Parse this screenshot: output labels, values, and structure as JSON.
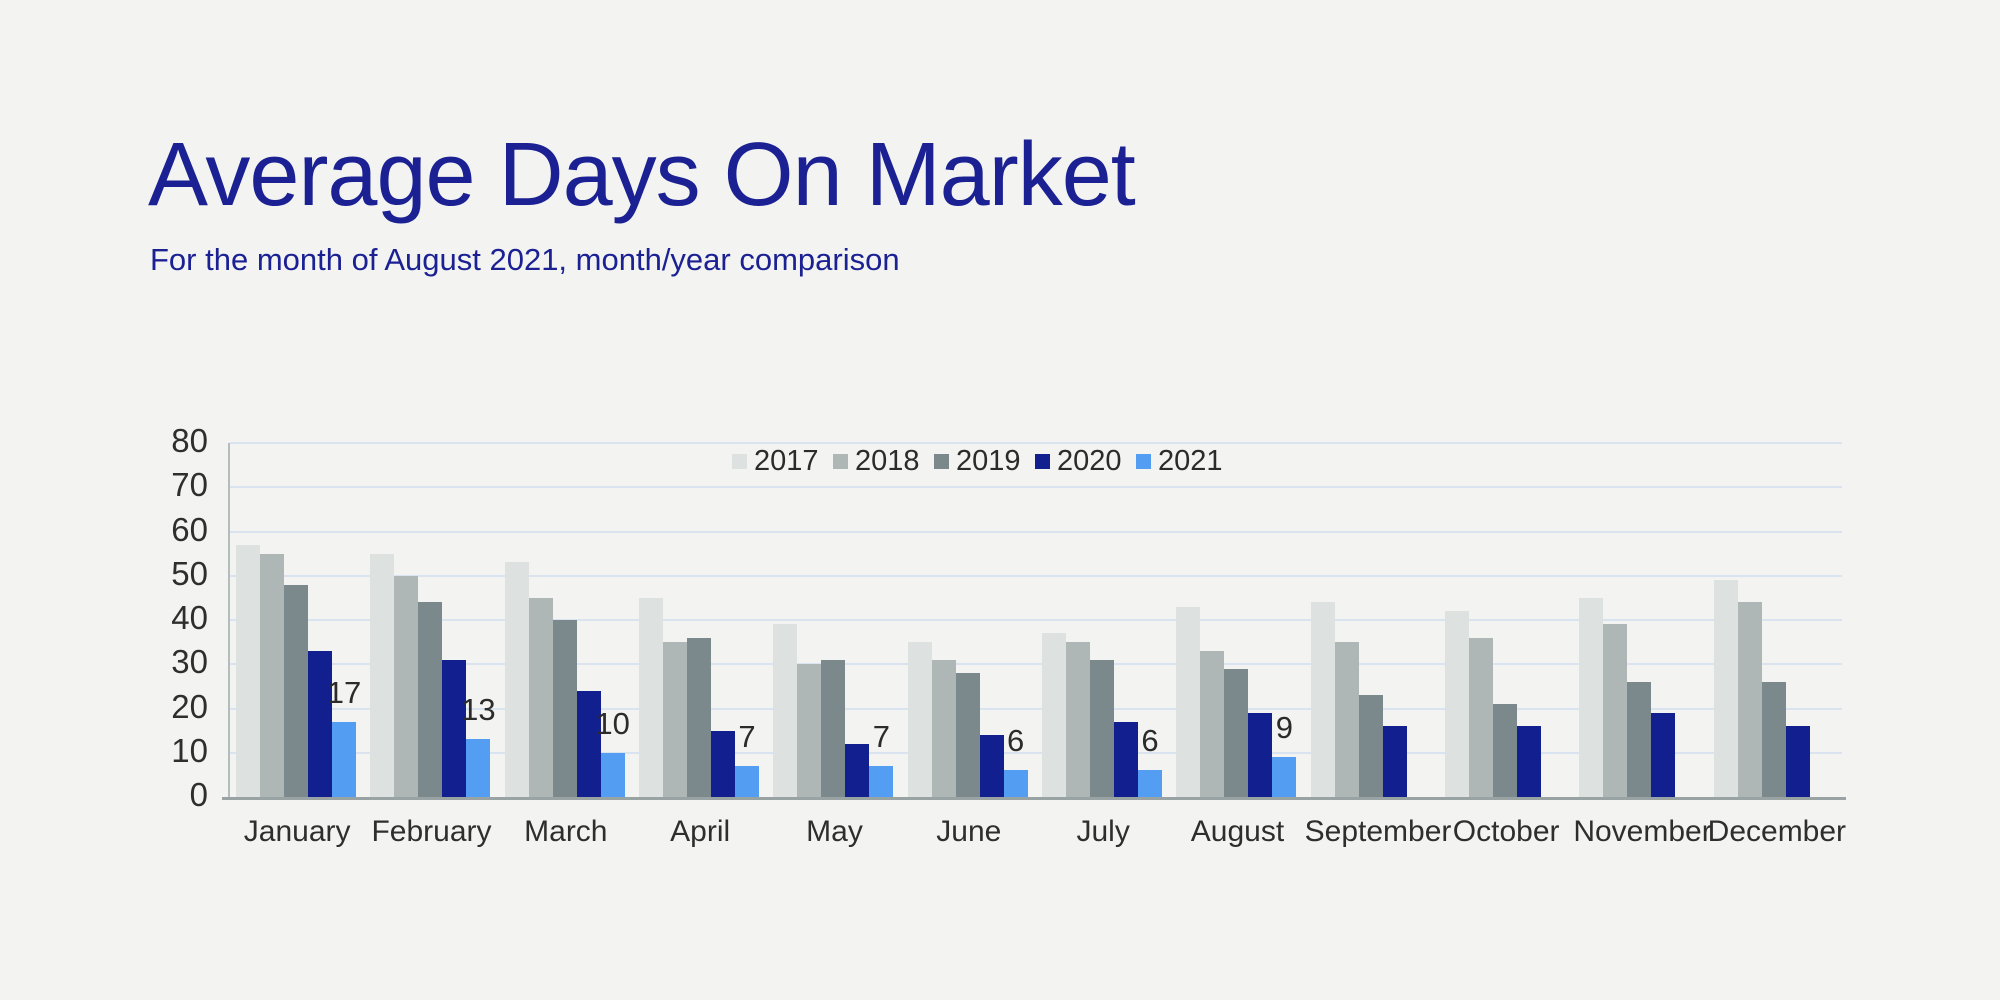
{
  "page": {
    "background_color": "#f3f4f2"
  },
  "header": {
    "title": "Average Days On Market",
    "subtitle": "For the month of August 2021, month/year comparison",
    "accent_color": "#1b2193"
  },
  "chart_data": {
    "type": "bar",
    "title": "Average Days On Market",
    "subtitle": "For the month of August 2021, month/year comparison",
    "categories": [
      "January",
      "February",
      "March",
      "April",
      "May",
      "June",
      "July",
      "August",
      "September",
      "October",
      "November",
      "December"
    ],
    "series": [
      {
        "name": "2017",
        "color": "#dde2e0",
        "values": [
          57,
          55,
          53,
          45,
          39,
          35,
          37,
          43,
          44,
          42,
          45,
          49
        ]
      },
      {
        "name": "2018",
        "color": "#aeb7b5",
        "values": [
          55,
          50,
          45,
          35,
          30,
          31,
          35,
          33,
          35,
          36,
          39,
          44
        ]
      },
      {
        "name": "2019",
        "color": "#7b898c",
        "values": [
          48,
          44,
          40,
          36,
          31,
          28,
          31,
          29,
          23,
          21,
          26,
          26
        ]
      },
      {
        "name": "2020",
        "color": "#11208e",
        "values": [
          33,
          31,
          24,
          15,
          12,
          14,
          17,
          19,
          16,
          16,
          19,
          16
        ]
      },
      {
        "name": "2021",
        "color": "#539df2",
        "values": [
          17,
          13,
          10,
          7,
          7,
          6,
          6,
          9,
          null,
          null,
          null,
          null
        ],
        "data_labels": true
      }
    ],
    "ylim": [
      0,
      80
    ],
    "ytick_step": 10,
    "grid": "horizontal",
    "legend_position": "top-center",
    "gridline_color": "#d9e4f0",
    "axis_color": "#99a3a3",
    "label_color": "#2e2e2e"
  }
}
